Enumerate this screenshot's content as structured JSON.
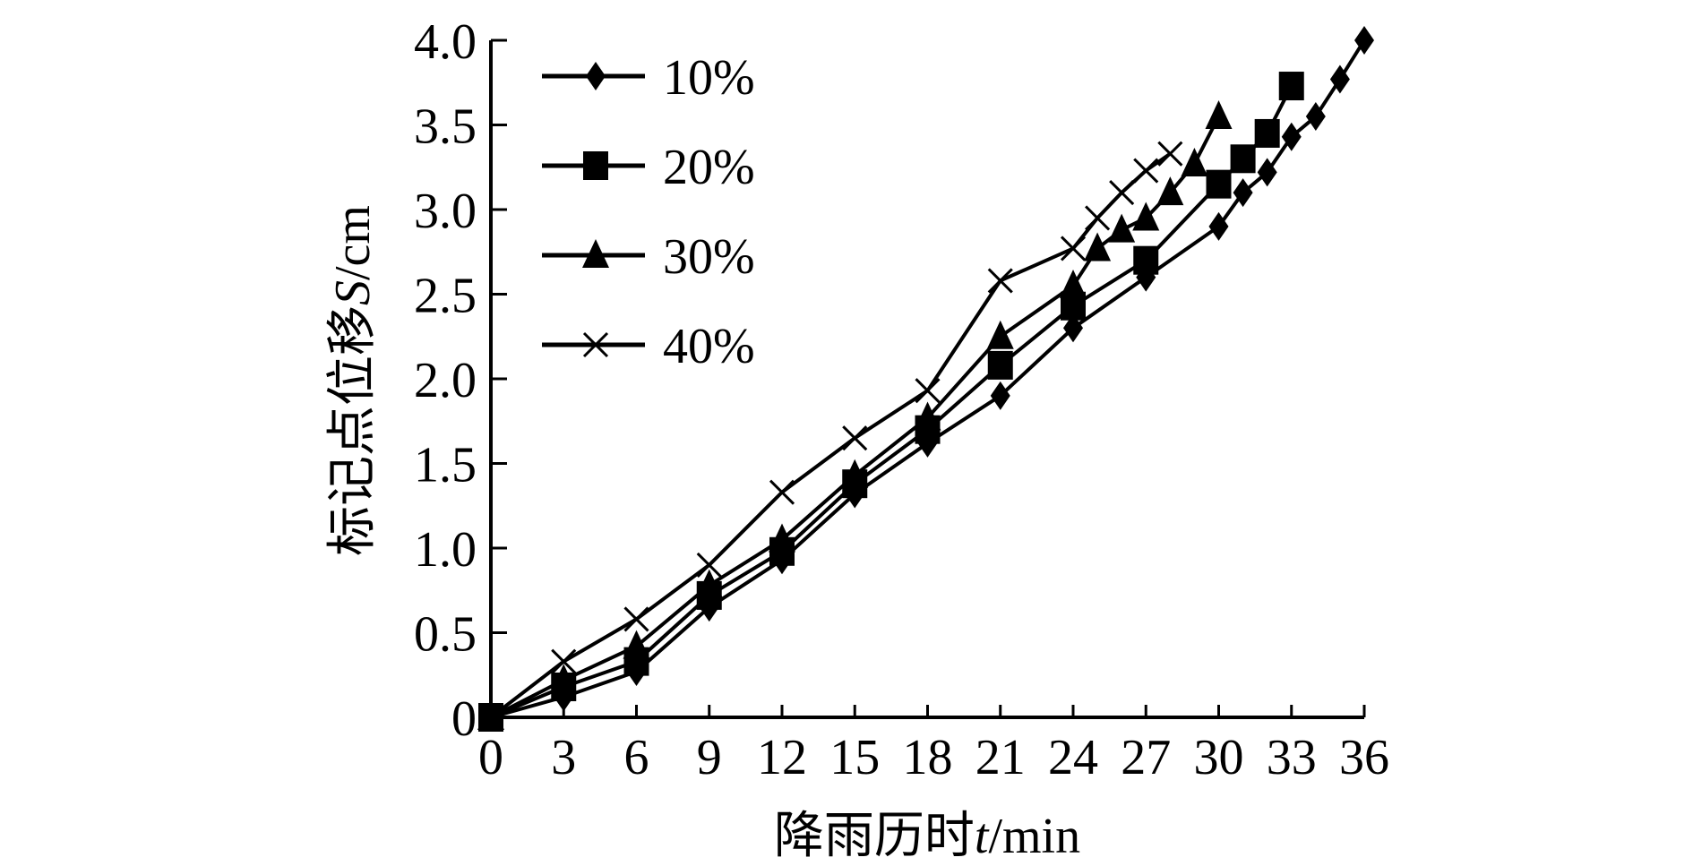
{
  "chart_data": {
    "type": "line",
    "title": "",
    "xlabel": "降雨历时t/min",
    "xlabel_parts": {
      "prefix": "降雨历时",
      "var": "t",
      "unit": "/min"
    },
    "ylabel": "标记点位移S/cm",
    "ylabel_parts": {
      "prefix": "标记点位移",
      "var": "S",
      "unit": "/cm"
    },
    "xlim": [
      0,
      36
    ],
    "ylim": [
      0,
      4.0
    ],
    "xticks": [
      0,
      3,
      6,
      9,
      12,
      15,
      18,
      21,
      24,
      27,
      30,
      33,
      36
    ],
    "yticks": [
      "0",
      "0.5",
      "1.0",
      "1.5",
      "2.0",
      "2.5",
      "3.0",
      "3.5",
      "4.0"
    ],
    "ytick_values": [
      0,
      0.5,
      1.0,
      1.5,
      2.0,
      2.5,
      3.0,
      3.5,
      4.0
    ],
    "grid": false,
    "legend_position": "upper-left",
    "series": [
      {
        "name": "10%",
        "marker": "diamond",
        "x": [
          0,
          3,
          6,
          9,
          12,
          15,
          18,
          21,
          24,
          27,
          30,
          31,
          32,
          33,
          34,
          35,
          36
        ],
        "values": [
          0,
          0.12,
          0.27,
          0.65,
          0.93,
          1.32,
          1.62,
          1.9,
          2.3,
          2.6,
          2.9,
          3.1,
          3.22,
          3.43,
          3.55,
          3.77,
          4.0
        ]
      },
      {
        "name": "20%",
        "marker": "square",
        "x": [
          0,
          3,
          6,
          9,
          12,
          15,
          18,
          21,
          24,
          27,
          30,
          31,
          32,
          33
        ],
        "values": [
          0,
          0.18,
          0.33,
          0.72,
          0.98,
          1.38,
          1.7,
          2.08,
          2.43,
          2.7,
          3.15,
          3.3,
          3.45,
          3.73
        ]
      },
      {
        "name": "30%",
        "marker": "triangle",
        "x": [
          0,
          3,
          6,
          9,
          12,
          15,
          18,
          21,
          24,
          25,
          26,
          27,
          28,
          29,
          30
        ],
        "values": [
          0,
          0.22,
          0.42,
          0.78,
          1.05,
          1.43,
          1.77,
          2.25,
          2.55,
          2.77,
          2.88,
          2.95,
          3.1,
          3.27,
          3.55
        ]
      },
      {
        "name": "40%",
        "marker": "cross",
        "x": [
          0,
          3,
          6,
          9,
          12,
          15,
          18,
          21,
          24,
          25,
          26,
          27,
          28
        ],
        "values": [
          0,
          0.33,
          0.58,
          0.9,
          1.33,
          1.65,
          1.93,
          2.58,
          2.77,
          2.95,
          3.1,
          3.23,
          3.33
        ]
      }
    ]
  }
}
